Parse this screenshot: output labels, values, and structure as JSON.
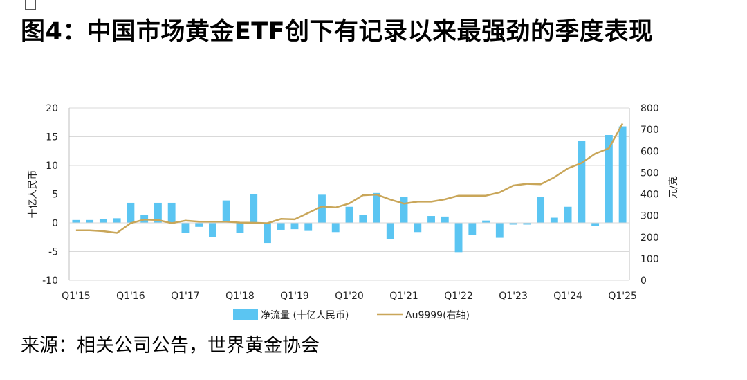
{
  "title": "图4：中国市场黄金ETF创下有记录以来最强劲的季度表现",
  "source": "来源：相关公司公告，世界黄金协会",
  "chart_data": {
    "type": "bar",
    "left_axis": {
      "label": "十亿人民币",
      "range": [
        -10,
        20
      ],
      "ticks": [
        "20",
        "15",
        "10",
        "5",
        "0",
        "-5",
        "-10"
      ]
    },
    "right_axis": {
      "label": "元/克",
      "range": [
        0,
        800
      ],
      "ticks": [
        "800",
        "700",
        "600",
        "500",
        "400",
        "300",
        "200",
        "100",
        "0"
      ]
    },
    "x_tick_labels": [
      "Q1'15",
      "Q1'16",
      "Q1'17",
      "Q1'18",
      "Q1'19",
      "Q1'20",
      "Q1'21",
      "Q1'22",
      "Q1'23",
      "Q1'24",
      "Q1'25"
    ],
    "categories": [
      "Q1'15",
      "Q2'15",
      "Q3'15",
      "Q4'15",
      "Q1'16",
      "Q2'16",
      "Q3'16",
      "Q4'16",
      "Q1'17",
      "Q2'17",
      "Q3'17",
      "Q4'17",
      "Q1'18",
      "Q2'18",
      "Q3'18",
      "Q4'18",
      "Q1'19",
      "Q2'19",
      "Q3'19",
      "Q4'19",
      "Q1'20",
      "Q2'20",
      "Q3'20",
      "Q4'20",
      "Q1'21",
      "Q2'21",
      "Q3'21",
      "Q4'21",
      "Q1'22",
      "Q2'22",
      "Q3'22",
      "Q4'22",
      "Q1'23",
      "Q2'23",
      "Q3'23",
      "Q4'23",
      "Q1'24",
      "Q2'24",
      "Q3'24",
      "Q4'24",
      "Q1'25"
    ],
    "series": [
      {
        "name": "净流量 (十亿人民币)",
        "type": "bar",
        "axis": "left",
        "color": "#5bc5f2",
        "values": [
          0.5,
          0.5,
          0.7,
          0.8,
          3.5,
          1.4,
          3.5,
          3.5,
          -1.8,
          -0.7,
          -2.5,
          3.9,
          -1.7,
          5.0,
          -3.5,
          -1.2,
          -1.1,
          -1.4,
          4.9,
          -1.6,
          2.8,
          1.4,
          5.2,
          -2.8,
          4.5,
          -1.6,
          1.2,
          1.1,
          -5.1,
          -2.1,
          0.4,
          -2.6,
          -0.3,
          -0.3,
          4.5,
          0.9,
          2.8,
          14.3,
          -0.6,
          15.3,
          16.8
        ]
      },
      {
        "name": "Au9999(右轴)",
        "type": "line",
        "axis": "right",
        "color": "#c9a659",
        "values": [
          232,
          232,
          228,
          220,
          265,
          282,
          280,
          265,
          277,
          272,
          272,
          272,
          268,
          267,
          265,
          285,
          283,
          313,
          343,
          338,
          357,
          395,
          398,
          375,
          356,
          365,
          365,
          376,
          393,
          393,
          393,
          408,
          440,
          448,
          446,
          478,
          520,
          545,
          588,
          613,
          728
        ]
      }
    ],
    "legend_position": "bottom",
    "grid": true
  }
}
